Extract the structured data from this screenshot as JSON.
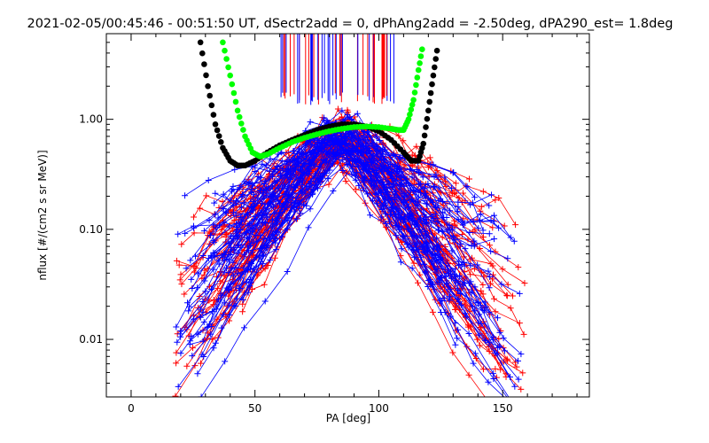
{
  "chart_data": {
    "type": "line",
    "title": "2021-02-05/00:45:46 - 00:51:50 UT, dSectr2add = 0, dPhAng2add = -2.50deg, dPA290_est=   1.8deg",
    "xlabel": "PA [deg]",
    "ylabel": "nflux [#/(cm2 s sr MeV)]",
    "xlim": [
      -10,
      185
    ],
    "ylim": [
      0.003,
      6
    ],
    "yscale": "log",
    "x_ticks": [
      0,
      50,
      100,
      150
    ],
    "x_tick_labels": [
      "0",
      "50",
      "100",
      "150"
    ],
    "y_ticks": [
      0.01,
      0.1,
      1.0
    ],
    "y_tick_labels": [
      "0.01",
      "0.10",
      "1.00"
    ],
    "grid": false,
    "colors": {
      "red": "#ff0000",
      "blue": "#0000ff",
      "black": "#000000",
      "green": "#00ff00"
    },
    "series": [
      {
        "color": "#000000",
        "style": "thick-dots",
        "x": [
          28,
          31,
          34,
          37,
          40,
          43,
          46,
          50,
          55,
          60,
          65,
          70,
          75,
          80,
          85,
          90,
          95,
          100,
          105,
          110,
          113,
          116,
          118,
          120,
          122,
          124
        ],
        "y": [
          5.0,
          2.0,
          0.9,
          0.55,
          0.42,
          0.38,
          0.38,
          0.42,
          0.5,
          0.58,
          0.65,
          0.72,
          0.8,
          0.86,
          0.9,
          0.9,
          0.86,
          0.78,
          0.65,
          0.5,
          0.42,
          0.42,
          0.6,
          1.2,
          2.5,
          5.0
        ]
      },
      {
        "color": "#00ff00",
        "style": "thick-dots",
        "x": [
          37,
          40,
          43,
          46,
          49,
          52,
          55,
          60,
          65,
          70,
          75,
          80,
          85,
          90,
          95,
          100,
          105,
          108,
          110,
          112,
          114,
          116,
          118
        ],
        "y": [
          5.0,
          2.5,
          1.2,
          0.7,
          0.5,
          0.46,
          0.48,
          0.55,
          0.62,
          0.68,
          0.73,
          0.78,
          0.82,
          0.85,
          0.86,
          0.85,
          0.82,
          0.8,
          0.8,
          1.0,
          1.5,
          2.8,
          5.0
        ]
      }
    ]
  }
}
